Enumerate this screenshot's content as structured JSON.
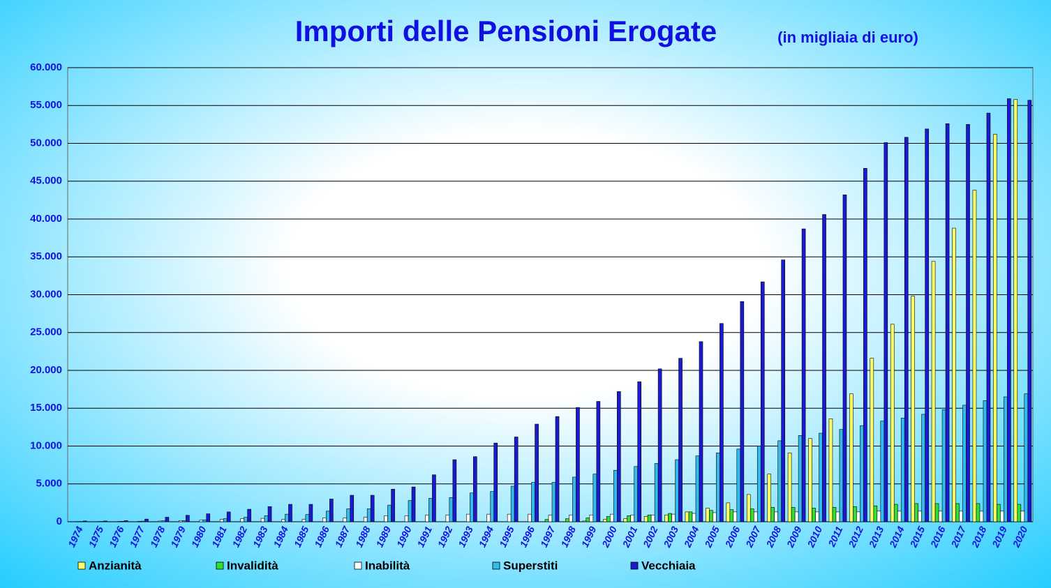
{
  "chart_data": {
    "type": "bar",
    "title": "Importi delle Pensioni Erogate",
    "subtitle": "(in migliaia di euro)",
    "categories": [
      "1974",
      "1975",
      "1976",
      "1977",
      "1978",
      "1979",
      "1980",
      "1981",
      "1982",
      "1983",
      "1984",
      "1985",
      "1986",
      "1987",
      "1988",
      "1989",
      "1990",
      "1991",
      "1992",
      "1993",
      "1994",
      "1995",
      "1996",
      "1997",
      "1998",
      "1999",
      "2000",
      "2001",
      "2002",
      "2003",
      "2004",
      "2005",
      "2006",
      "2007",
      "2008",
      "2009",
      "2010",
      "2011",
      "2012",
      "2013",
      "2014",
      "2015",
      "2016",
      "2017",
      "2018",
      "2019",
      "2020"
    ],
    "series": [
      {
        "name": "Anzianità",
        "color": "#ffff66",
        "values": [
          0,
          0,
          0,
          0,
          0,
          0,
          0,
          0,
          0,
          0,
          0,
          0,
          0,
          0,
          0,
          0,
          0,
          0,
          0,
          0,
          0,
          0,
          0,
          0,
          0,
          100,
          300,
          400,
          700,
          900,
          1300,
          1800,
          2500,
          3600,
          6300,
          9100,
          11000,
          13600,
          16900,
          21600,
          26100,
          29800,
          34400,
          38800,
          43800,
          51200,
          55800
        ]
      },
      {
        "name": "Invalidità",
        "color": "#33dd33",
        "values": [
          0,
          0,
          0,
          0,
          0,
          0,
          0,
          0,
          0,
          0,
          0,
          0,
          0,
          0,
          0,
          0,
          0,
          0,
          0,
          0,
          0,
          0,
          0,
          300,
          400,
          500,
          700,
          800,
          900,
          1100,
          1300,
          1500,
          1600,
          1700,
          1900,
          1900,
          1800,
          1900,
          2000,
          2100,
          2300,
          2400,
          2400,
          2400,
          2400,
          2300,
          2300
        ]
      },
      {
        "name": "Inabilità",
        "color": "#ffffff",
        "values": [
          30,
          30,
          40,
          60,
          100,
          150,
          200,
          300,
          400,
          450,
          300,
          300,
          500,
          500,
          600,
          800,
          800,
          900,
          900,
          1000,
          1000,
          1000,
          1000,
          900,
          900,
          900,
          1000,
          900,
          900,
          1000,
          1100,
          1200,
          1300,
          1300,
          1300,
          1300,
          1300,
          1300,
          1300,
          1400,
          1400,
          1400,
          1400,
          1400,
          1400,
          1400,
          1400
        ]
      },
      {
        "name": "Superstiti",
        "color": "#33bbee",
        "values": [
          30,
          40,
          60,
          80,
          120,
          150,
          250,
          400,
          600,
          800,
          1000,
          950,
          1400,
          1700,
          1700,
          2200,
          2800,
          3100,
          3200,
          3800,
          4000,
          4700,
          5200,
          5200,
          5900,
          6300,
          6800,
          7300,
          7700,
          8200,
          8700,
          9100,
          9600,
          10000,
          10700,
          11400,
          11700,
          12200,
          12700,
          13300,
          13700,
          14200,
          14800,
          15400,
          16000,
          16500,
          16900
        ]
      },
      {
        "name": "Vecchiaia",
        "color": "#1a1ad0",
        "values": [
          100,
          100,
          150,
          350,
          600,
          850,
          1050,
          1300,
          1650,
          2000,
          2300,
          2300,
          3000,
          3500,
          3500,
          4300,
          4600,
          6200,
          8200,
          8600,
          10400,
          11200,
          12900,
          13900,
          15100,
          15900,
          17200,
          18500,
          20200,
          21600,
          23800,
          26200,
          29100,
          31700,
          34600,
          38700,
          40600,
          43200,
          46700,
          50100,
          50800,
          51900,
          52600,
          52500,
          54000,
          55900,
          55700
        ]
      }
    ],
    "ylim": [
      0,
      60000
    ],
    "yticks": [
      0,
      {
        "value": 5000,
        "label": "5.000"
      },
      {
        "value": 10000,
        "label": "10.000"
      },
      {
        "value": 15000,
        "label": "15.000"
      },
      {
        "value": 20000,
        "label": "20.000"
      },
      {
        "value": 25000,
        "label": "25.000"
      },
      {
        "value": 30000,
        "label": "30.000"
      },
      {
        "value": 35000,
        "label": "35.000"
      },
      {
        "value": 40000,
        "label": "40.000"
      },
      {
        "value": 45000,
        "label": "45.000"
      },
      {
        "value": 50000,
        "label": "50.000"
      },
      {
        "value": 55000,
        "label": "55.000"
      },
      {
        "value": 60000,
        "label": "60.000"
      }
    ],
    "grid": true
  }
}
